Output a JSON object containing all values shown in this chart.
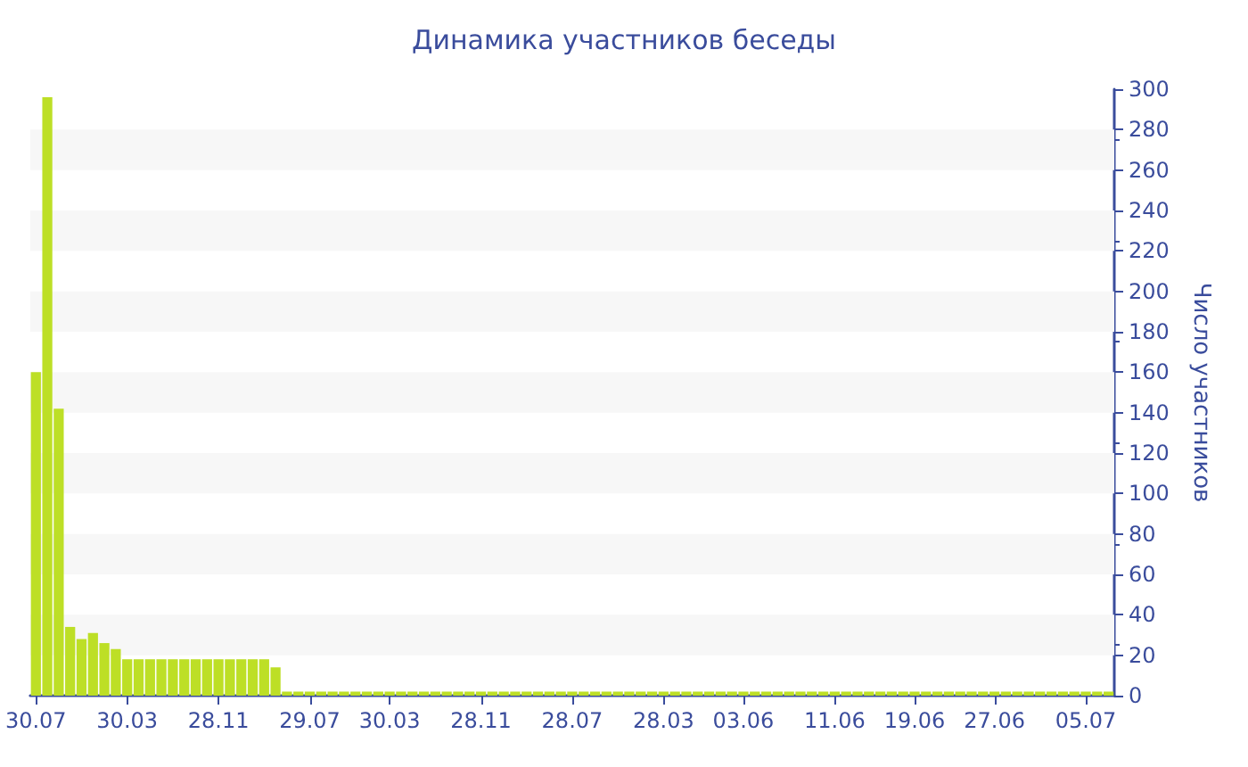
{
  "chart_data": {
    "type": "bar",
    "title": "Динамика участников беседы",
    "ylabel": "Число участников",
    "categories": [
      "30.07",
      null,
      null,
      null,
      null,
      null,
      null,
      null,
      "30.03",
      null,
      null,
      null,
      null,
      null,
      null,
      null,
      "28.11",
      null,
      null,
      null,
      null,
      null,
      null,
      null,
      "29.07",
      null,
      null,
      null,
      null,
      null,
      null,
      "30.03",
      null,
      null,
      null,
      null,
      null,
      null,
      null,
      "28.11",
      null,
      null,
      null,
      null,
      null,
      null,
      null,
      "28.07",
      null,
      null,
      null,
      null,
      null,
      null,
      null,
      "28.03",
      null,
      null,
      null,
      null,
      null,
      null,
      "03.06",
      null,
      null,
      null,
      null,
      null,
      null,
      null,
      "11.06",
      null,
      null,
      null,
      null,
      null,
      null,
      "19.06",
      null,
      null,
      null,
      null,
      null,
      null,
      "27.06",
      null,
      null,
      null,
      null,
      null,
      null,
      null,
      "05.07",
      null,
      null
    ],
    "values": [
      160,
      296,
      142,
      34,
      28,
      31,
      26,
      23,
      18,
      18,
      18,
      18,
      18,
      18,
      18,
      18,
      18,
      18,
      18,
      18,
      18,
      14,
      2,
      2,
      2,
      2,
      2,
      2,
      2,
      2,
      2,
      2,
      2,
      2,
      2,
      2,
      2,
      2,
      2,
      2,
      2,
      2,
      2,
      2,
      2,
      2,
      2,
      2,
      2,
      2,
      2,
      2,
      2,
      2,
      2,
      2,
      2,
      2,
      2,
      2,
      2,
      2,
      2,
      2,
      2,
      2,
      2,
      2,
      2,
      2,
      2,
      2,
      2,
      2,
      2,
      2,
      2,
      2,
      2,
      2,
      2,
      2,
      2,
      2,
      2,
      2,
      2,
      2,
      2,
      2,
      2,
      2,
      2,
      2,
      2
    ],
    "color": "#bddf26",
    "ylim": [
      0,
      300
    ],
    "yticks": [
      0,
      20,
      40,
      60,
      80,
      100,
      120,
      140,
      160,
      180,
      200,
      220,
      240,
      260,
      280,
      300
    ],
    "bands": [
      {
        "axis": "y",
        "from": 20,
        "to": 40,
        "color": "#f7f7f7"
      },
      {
        "axis": "y",
        "from": 60,
        "to": 80,
        "color": "#f7f7f7"
      },
      {
        "axis": "y",
        "from": 100,
        "to": 120,
        "color": "#f7f7f7"
      },
      {
        "axis": "y",
        "from": 140,
        "to": 160,
        "color": "#f7f7f7"
      },
      {
        "axis": "y",
        "from": 180,
        "to": 200,
        "color": "#f7f7f7"
      },
      {
        "axis": "y",
        "from": 220,
        "to": 240,
        "color": "#f7f7f7"
      },
      {
        "axis": "y",
        "from": 260,
        "to": 280,
        "color": "#f7f7f7"
      }
    ]
  }
}
